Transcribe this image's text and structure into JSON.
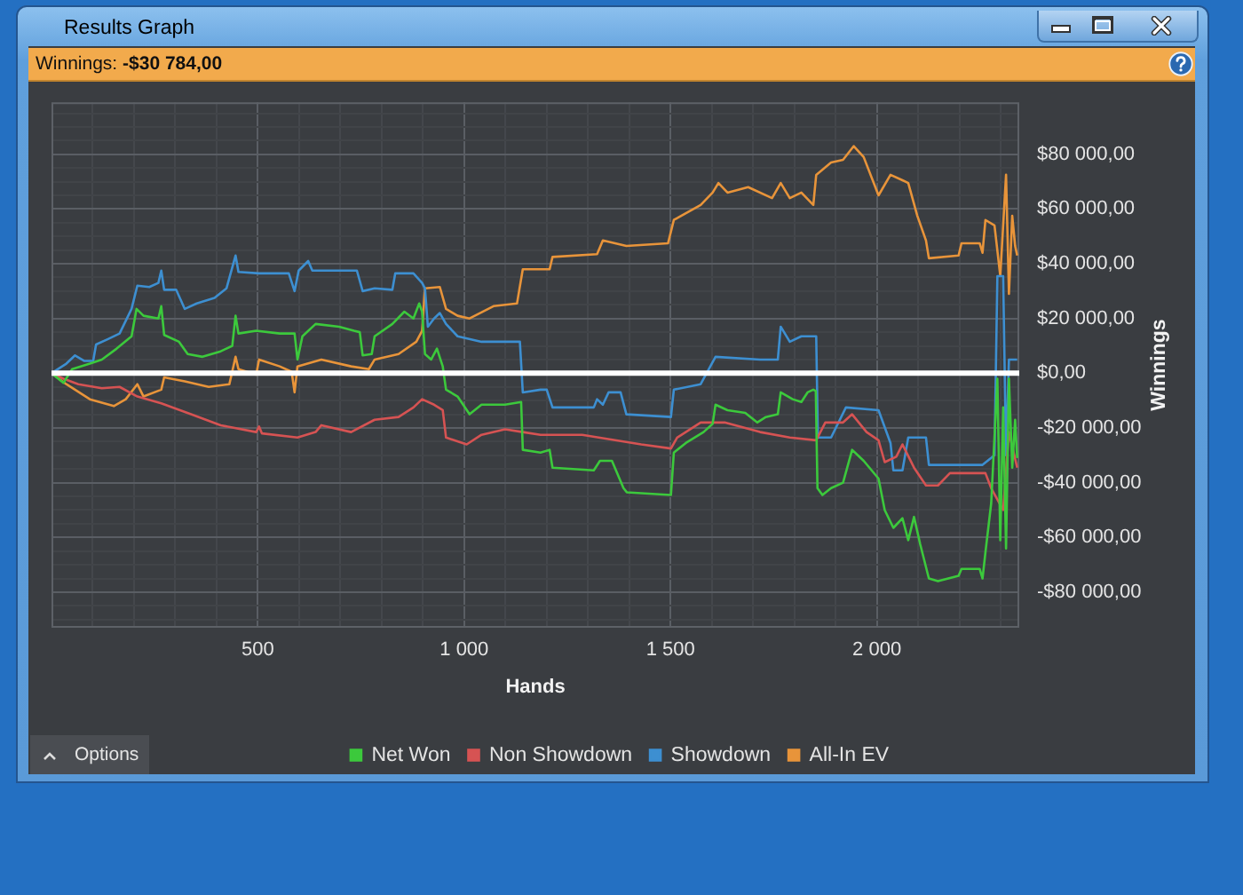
{
  "chart_data": {
    "type": "line",
    "title": "Results Graph",
    "subtitle": "Winnings: -$30 784,00",
    "xlabel": "Hands",
    "ylabel": "Winnings",
    "annotations": [
      "Options"
    ],
    "xlim": [
      0,
      2345
    ],
    "ylim": [
      -93000,
      99000
    ],
    "xticks": [
      {
        "value": 100,
        "label": null
      },
      {
        "value": 200,
        "label": null
      },
      {
        "value": 300,
        "label": null
      },
      {
        "value": 400,
        "label": null
      },
      500,
      {
        "value": 600,
        "label": null
      },
      {
        "value": 700,
        "label": null
      },
      {
        "value": 800,
        "label": null
      },
      {
        "value": 900,
        "label": null
      },
      {
        "value": 1000,
        "label": "1 000"
      },
      {
        "value": 1100,
        "label": null
      },
      {
        "value": 1200,
        "label": null
      },
      {
        "value": 1300,
        "label": null
      },
      {
        "value": 1400,
        "label": null
      },
      {
        "value": 1500,
        "label": "1 500"
      },
      {
        "value": 1600,
        "label": null
      },
      {
        "value": 1700,
        "label": null
      },
      {
        "value": 1800,
        "label": null
      },
      {
        "value": 1900,
        "label": null
      },
      {
        "value": 2000,
        "label": "2 000"
      },
      {
        "value": 2100,
        "label": null
      },
      {
        "value": 2200,
        "label": null
      },
      {
        "value": 2300,
        "label": null
      }
    ],
    "yticks": [
      {
        "value": -90000,
        "label": null
      },
      {
        "value": -85000,
        "label": null
      },
      {
        "value": -80000,
        "label": "-$80 000,00"
      },
      {
        "value": -75000,
        "label": null
      },
      {
        "value": -70000,
        "label": null
      },
      {
        "value": -65000,
        "label": null
      },
      {
        "value": -60000,
        "label": "-$60 000,00"
      },
      {
        "value": -55000,
        "label": null
      },
      {
        "value": -50000,
        "label": null
      },
      {
        "value": -45000,
        "label": null
      },
      {
        "value": -40000,
        "label": "-$40 000,00"
      },
      {
        "value": -35000,
        "label": null
      },
      {
        "value": -30000,
        "label": null
      },
      {
        "value": -25000,
        "label": null
      },
      {
        "value": -20000,
        "label": "-$20 000,00"
      },
      {
        "value": -15000,
        "label": null
      },
      {
        "value": -10000,
        "label": null
      },
      {
        "value": -5000,
        "label": null
      },
      {
        "value": 0,
        "label": "$0,00"
      },
      {
        "value": 5000,
        "label": null
      },
      {
        "value": 10000,
        "label": null
      },
      {
        "value": 15000,
        "label": null
      },
      {
        "value": 20000,
        "label": "$20 000,00"
      },
      {
        "value": 25000,
        "label": null
      },
      {
        "value": 30000,
        "label": null
      },
      {
        "value": 35000,
        "label": null
      },
      {
        "value": 40000,
        "label": "$40 000,00"
      },
      {
        "value": 45000,
        "label": null
      },
      {
        "value": 50000,
        "label": null
      },
      {
        "value": 55000,
        "label": null
      },
      {
        "value": 60000,
        "label": "$60 000,00"
      },
      {
        "value": 65000,
        "label": null
      },
      {
        "value": 70000,
        "label": null
      },
      {
        "value": 75000,
        "label": null
      },
      {
        "value": 80000,
        "label": "$80 000,00"
      },
      {
        "value": 85000,
        "label": null
      },
      {
        "value": 90000,
        "label": null
      },
      {
        "value": 95000,
        "label": null
      }
    ],
    "grid": true,
    "legend": "bottom",
    "marker": "none",
    "ref_lines": [
      {
        "axis": "y",
        "value": 0,
        "color": "#ffffff"
      }
    ],
    "series": [
      {
        "name": "Net Won",
        "color": "#3cc93c",
        "x": [
          0,
          29,
          50,
          93,
          122,
          158,
          194,
          206,
          223,
          259,
          266,
          273,
          309,
          330,
          366,
          410,
          438,
          446,
          453,
          496,
          553,
          589,
          596,
          608,
          640,
          697,
          733,
          747,
          754,
          776,
          783,
          826,
          855,
          877,
          891,
          898,
          905,
          920,
          934,
          948,
          956,
          984,
          1013,
          1042,
          1099,
          1138,
          1142,
          1185,
          1207,
          1214,
          1314,
          1329,
          1358,
          1386,
          1394,
          1501,
          1508,
          1537,
          1580,
          1602,
          1609,
          1638,
          1681,
          1710,
          1731,
          1760,
          1767,
          1796,
          1817,
          1832,
          1846,
          1852,
          1856,
          1868,
          1889,
          1918,
          1940,
          1968,
          2004,
          2019,
          2040,
          2062,
          2076,
          2090,
          2105,
          2126,
          2148,
          2198,
          2205,
          2249,
          2256,
          2263,
          2277,
          2292,
          2299,
          2306,
          2313,
          2320,
          2328,
          2335,
          2340
        ],
        "values": [
          0,
          -3500,
          1500,
          3500,
          5000,
          9000,
          13500,
          23500,
          21000,
          20000,
          24500,
          14000,
          11500,
          7000,
          6000,
          8000,
          10000,
          21000,
          14500,
          15500,
          14500,
          14500,
          5000,
          13500,
          18000,
          17000,
          15500,
          15000,
          6500,
          7000,
          13500,
          18000,
          22500,
          20000,
          25500,
          22500,
          7000,
          5000,
          9000,
          2500,
          -6000,
          -8500,
          -15000,
          -11500,
          -11500,
          -10500,
          -28000,
          -29000,
          -28000,
          -34500,
          -35500,
          -32000,
          -32000,
          -42000,
          -43500,
          -44500,
          -29000,
          -25500,
          -21500,
          -18500,
          -11500,
          -13500,
          -14500,
          -18000,
          -16000,
          -15000,
          -7000,
          -9500,
          -10500,
          -7000,
          -6000,
          -6500,
          -42000,
          -44500,
          -42000,
          -40000,
          -28000,
          -32000,
          -38500,
          -50000,
          -56500,
          -53000,
          -61000,
          -52500,
          -62500,
          -75000,
          -76000,
          -74000,
          -71500,
          -71500,
          -75000,
          -65500,
          -47500,
          -2000,
          -61000,
          -12500,
          -64000,
          -2000,
          -34500,
          -17000,
          -31000
        ]
      },
      {
        "name": "Non Showdown",
        "color": "#d65353",
        "x": [
          0,
          29,
          65,
          122,
          165,
          208,
          266,
          338,
          410,
          496,
          503,
          510,
          596,
          640,
          654,
          726,
          783,
          841,
          877,
          898,
          927,
          948,
          956,
          1006,
          1042,
          1099,
          1142,
          1185,
          1286,
          1429,
          1501,
          1516,
          1573,
          1631,
          1717,
          1789,
          1853,
          1875,
          1918,
          1940,
          1975,
          2004,
          2019,
          2047,
          2062,
          2090,
          2119,
          2148,
          2177,
          2263,
          2277,
          2306,
          2320,
          2340
        ],
        "values": [
          0,
          -2000,
          -4000,
          -5500,
          -5000,
          -8500,
          -11000,
          -15000,
          -19000,
          -21500,
          -19500,
          -22000,
          -23500,
          -21500,
          -19000,
          -21500,
          -17000,
          -16000,
          -12500,
          -9500,
          -11500,
          -13500,
          -23500,
          -26000,
          -22500,
          -20500,
          -21500,
          -22500,
          -22500,
          -26000,
          -27500,
          -23500,
          -18000,
          -18000,
          -21500,
          -23500,
          -24500,
          -18000,
          -18000,
          -15000,
          -21500,
          -24500,
          -32500,
          -30500,
          -26000,
          -34500,
          -41000,
          -41000,
          -36500,
          -36500,
          -42000,
          -50000,
          -21500,
          -34500
        ]
      },
      {
        "name": "Showdown",
        "color": "#3d8fd1",
        "x": [
          0,
          36,
          57,
          79,
          101,
          108,
          137,
          165,
          194,
          208,
          237,
          259,
          266,
          273,
          302,
          323,
          352,
          395,
          424,
          446,
          453,
          503,
          575,
          589,
          599,
          622,
          632,
          740,
          754,
          783,
          826,
          833,
          877,
          898,
          905,
          912,
          927,
          941,
          956,
          984,
          1042,
          1135,
          1142,
          1185,
          1200,
          1214,
          1314,
          1322,
          1336,
          1350,
          1379,
          1393,
          1501,
          1508,
          1573,
          1609,
          1717,
          1760,
          1767,
          1789,
          1817,
          1853,
          1857,
          1889,
          1925,
          2004,
          2033,
          2040,
          2062,
          2076,
          2119,
          2126,
          2256,
          2285,
          2292,
          2306,
          2313,
          2320,
          2340
        ],
        "values": [
          0,
          3500,
          6500,
          4500,
          4500,
          10500,
          12500,
          14500,
          23500,
          32000,
          31500,
          33000,
          37500,
          30500,
          30500,
          23500,
          25500,
          27500,
          31000,
          43000,
          37000,
          36500,
          36500,
          30000,
          37500,
          41000,
          37500,
          37500,
          30000,
          31000,
          30500,
          36500,
          36500,
          33000,
          31000,
          17000,
          20000,
          22000,
          18000,
          13500,
          11500,
          11500,
          -7000,
          -6000,
          -6000,
          -12500,
          -12500,
          -9500,
          -11500,
          -7000,
          -7000,
          -15000,
          -16000,
          -6000,
          -4000,
          6000,
          5000,
          5000,
          17000,
          11500,
          13500,
          13500,
          -23500,
          -23500,
          -12500,
          -13500,
          -25500,
          -35500,
          -35500,
          -23500,
          -23500,
          -33500,
          -33500,
          -30000,
          35500,
          35500,
          -30000,
          5000,
          5000
        ]
      },
      {
        "name": "All-In EV",
        "color": "#e8943a",
        "x": [
          0,
          36,
          93,
          151,
          180,
          208,
          223,
          266,
          273,
          323,
          381,
          431,
          446,
          453,
          496,
          503,
          553,
          582,
          589,
          596,
          654,
          726,
          769,
          783,
          841,
          884,
          898,
          905,
          941,
          956,
          984,
          1013,
          1071,
          1128,
          1142,
          1207,
          1214,
          1322,
          1336,
          1393,
          1494,
          1508,
          1573,
          1602,
          1616,
          1638,
          1688,
          1746,
          1767,
          1789,
          1817,
          1846,
          1853,
          1889,
          1918,
          1944,
          1968,
          2004,
          2033,
          2062,
          2076,
          2098,
          2119,
          2126,
          2198,
          2205,
          2249,
          2256,
          2263,
          2285,
          2299,
          2313,
          2320,
          2328,
          2335,
          2340
        ],
        "values": [
          0,
          -4000,
          -9500,
          -12000,
          -9500,
          -4000,
          -8500,
          -6000,
          -1500,
          -3000,
          -5000,
          -4000,
          6000,
          1500,
          -500,
          5000,
          2500,
          500,
          -7000,
          2500,
          5000,
          2500,
          1500,
          5000,
          7000,
          11500,
          15500,
          31000,
          31500,
          23500,
          21000,
          20000,
          24500,
          25500,
          38000,
          38000,
          42500,
          43500,
          48500,
          46500,
          47500,
          56000,
          61500,
          66000,
          69500,
          66000,
          68000,
          64000,
          69500,
          64000,
          66000,
          61500,
          72500,
          77000,
          78000,
          83000,
          79000,
          65000,
          72500,
          70500,
          69500,
          57500,
          48500,
          42000,
          43000,
          47500,
          47500,
          44000,
          56000,
          54000,
          35500,
          72500,
          29000,
          57500,
          46500,
          43000
        ]
      }
    ]
  }
}
